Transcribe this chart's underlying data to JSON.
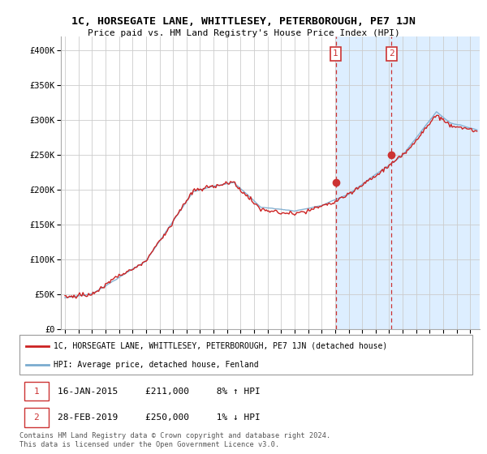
{
  "title": "1C, HORSEGATE LANE, WHITTLESEY, PETERBOROUGH, PE7 1JN",
  "subtitle": "Price paid vs. HM Land Registry's House Price Index (HPI)",
  "ylim": [
    0,
    420000
  ],
  "yticks": [
    0,
    50000,
    100000,
    150000,
    200000,
    250000,
    300000,
    350000,
    400000
  ],
  "ytick_labels": [
    "£0",
    "£50K",
    "£100K",
    "£150K",
    "£200K",
    "£250K",
    "£300K",
    "£350K",
    "£400K"
  ],
  "bg_color": "#ffffff",
  "plot_bg_color": "#ffffff",
  "grid_color": "#cccccc",
  "transaction1_x": 2015.04,
  "transaction1_price": 211000,
  "transaction2_x": 2019.17,
  "transaction2_price": 250000,
  "highlight_color": "#ddeeff",
  "vline_color": "#cc3333",
  "marker_color": "#cc3333",
  "line1_color": "#cc2222",
  "line2_color": "#7aabcf",
  "legend_label1": "1C, HORSEGATE LANE, WHITTLESEY, PETERBOROUGH, PE7 1JN (detached house)",
  "legend_label2": "HPI: Average price, detached house, Fenland",
  "footer": "Contains HM Land Registry data © Crown copyright and database right 2024.\nThis data is licensed under the Open Government Licence v3.0.",
  "note1_text": "16-JAN-2015     £211,000     8% ↑ HPI",
  "note2_text": "28-FEB-2019     £250,000     1% ↓ HPI"
}
